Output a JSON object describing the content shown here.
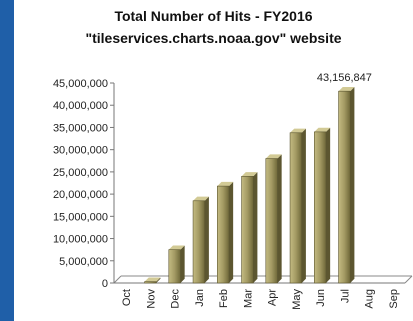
{
  "chart_data": {
    "type": "bar",
    "title": "Total Number of Hits - FY2016",
    "subtitle": "\"tileservices.charts.noaa.gov\" website",
    "categories": [
      "Oct",
      "Nov",
      "Dec",
      "Jan",
      "Feb",
      "Mar",
      "Apr",
      "May",
      "Jun",
      "Jul",
      "Aug",
      "Sep"
    ],
    "values": [
      0,
      300000,
      7500000,
      18500000,
      21800000,
      24000000,
      28000000,
      33800000,
      34000000,
      43156847,
      0,
      0
    ],
    "yticks": [
      "0",
      "5,000,000",
      "10,000,000",
      "15,000,000",
      "20,000,000",
      "25,000,000",
      "30,000,000",
      "35,000,000",
      "40,000,000",
      "45,000,000"
    ],
    "ylim": [
      0,
      45000000
    ],
    "data_labels": [
      {
        "category": "Jul",
        "text": "43,156,847"
      }
    ],
    "bar_color": "#a39a63",
    "grid": false,
    "legend": "none"
  }
}
